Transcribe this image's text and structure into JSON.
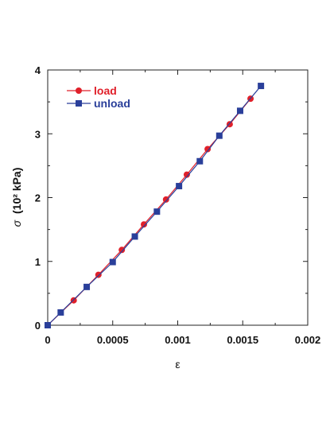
{
  "chart_data": {
    "type": "line",
    "xlabel": "ε",
    "ylabel_sigma": "σ",
    "ylabel_unit": "(10² kPa)",
    "xlim": [
      0,
      0.002
    ],
    "ylim": [
      0,
      4
    ],
    "x_ticks": [
      "0",
      "0.0005",
      "0.001",
      "0.0015",
      "0.002"
    ],
    "y_ticks": [
      "0",
      "1",
      "2",
      "3",
      "4"
    ],
    "grid": false,
    "legend_position": "top-left",
    "series": [
      {
        "name": "load",
        "color": "#e0202a",
        "marker": "circle",
        "points": [
          [
            0,
            0
          ],
          [
            0.0002,
            0.39
          ],
          [
            0.00039,
            0.79
          ],
          [
            0.00057,
            1.18
          ],
          [
            0.00074,
            1.58
          ],
          [
            0.00091,
            1.97
          ],
          [
            0.00107,
            2.36
          ],
          [
            0.00123,
            2.76
          ],
          [
            0.0014,
            3.15
          ],
          [
            0.00156,
            3.55
          ]
        ]
      },
      {
        "name": "unload",
        "color": "#2a3f9a",
        "marker": "square",
        "points": [
          [
            0,
            0
          ],
          [
            0.0001,
            0.2
          ],
          [
            0.0003,
            0.6
          ],
          [
            0.0005,
            0.99
          ],
          [
            0.00067,
            1.39
          ],
          [
            0.00084,
            1.78
          ],
          [
            0.00101,
            2.18
          ],
          [
            0.00117,
            2.57
          ],
          [
            0.00132,
            2.97
          ],
          [
            0.00148,
            3.36
          ],
          [
            0.00164,
            3.75
          ]
        ]
      }
    ]
  }
}
